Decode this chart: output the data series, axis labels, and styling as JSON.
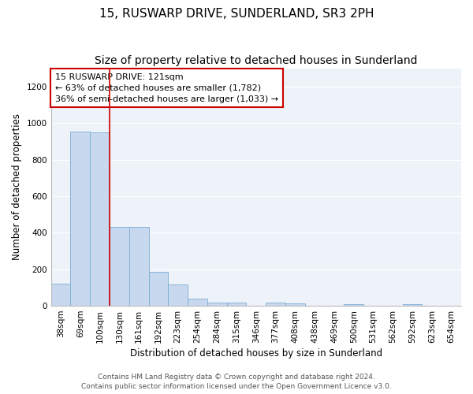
{
  "title": "15, RUSWARP DRIVE, SUNDERLAND, SR3 2PH",
  "subtitle": "Size of property relative to detached houses in Sunderland",
  "xlabel": "Distribution of detached houses by size in Sunderland",
  "ylabel": "Number of detached properties",
  "categories": [
    "38sqm",
    "69sqm",
    "100sqm",
    "130sqm",
    "161sqm",
    "192sqm",
    "223sqm",
    "254sqm",
    "284sqm",
    "315sqm",
    "346sqm",
    "377sqm",
    "408sqm",
    "438sqm",
    "469sqm",
    "500sqm",
    "531sqm",
    "562sqm",
    "592sqm",
    "623sqm",
    "654sqm"
  ],
  "values": [
    120,
    955,
    948,
    430,
    430,
    185,
    118,
    40,
    18,
    18,
    0,
    18,
    15,
    0,
    0,
    8,
    0,
    0,
    8,
    0,
    0
  ],
  "bar_color": "#c8d8ee",
  "bar_edge_color": "#7aadd4",
  "vline_color": "#cc0000",
  "vline_pos": 2.5,
  "annotation_text": "15 RUSWARP DRIVE: 121sqm\n← 63% of detached houses are smaller (1,782)\n36% of semi-detached houses are larger (1,033) →",
  "annotation_box_color": "#ffffff",
  "annotation_box_edge": "#cc0000",
  "ylim": [
    0,
    1300
  ],
  "yticks": [
    0,
    200,
    400,
    600,
    800,
    1000,
    1200
  ],
  "footer_line1": "Contains HM Land Registry data © Crown copyright and database right 2024.",
  "footer_line2": "Contains public sector information licensed under the Open Government Licence v3.0.",
  "bg_color": "#eef2f9",
  "title_fontsize": 11,
  "subtitle_fontsize": 10,
  "axis_label_fontsize": 8.5,
  "tick_fontsize": 7.5,
  "annotation_fontsize": 8,
  "footer_fontsize": 6.5
}
